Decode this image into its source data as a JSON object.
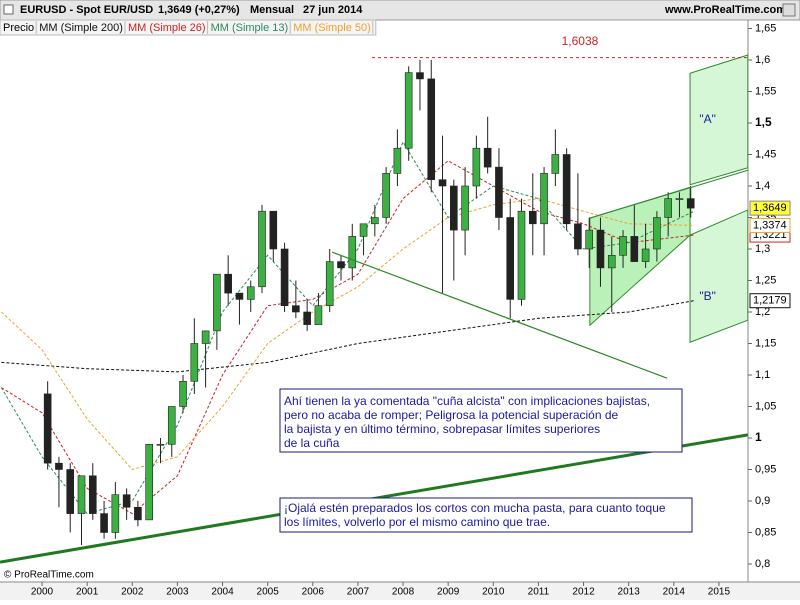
{
  "chart_data": {
    "type": "candlestick",
    "title": "EURUSD - Spot EUR/USD",
    "quote": "1,3649 (+0,27%)",
    "period": "Mensual",
    "date": "27 jun 2014",
    "source": "www.ProRealTime.com",
    "copyright": "© ProRealTime.com",
    "price_name": "Precio",
    "price_last_label": "1,3649",
    "up_color": "#3cb043",
    "down_color": "#222222",
    "x": [
      2000.125,
      2000.375,
      2000.625,
      2000.875,
      2001.125,
      2001.375,
      2001.625,
      2001.875,
      2002.125,
      2002.375,
      2002.625,
      2002.875,
      2003.125,
      2003.375,
      2003.625,
      2003.875,
      2004.125,
      2004.375,
      2004.625,
      2004.875,
      2005.125,
      2005.375,
      2005.625,
      2005.875,
      2006.125,
      2006.375,
      2006.625,
      2006.875,
      2007.125,
      2007.375,
      2007.625,
      2007.875,
      2008.125,
      2008.375,
      2008.625,
      2008.875,
      2009.125,
      2009.375,
      2009.625,
      2009.875,
      2010.125,
      2010.375,
      2010.625,
      2010.875,
      2011.125,
      2011.375,
      2011.625,
      2011.875,
      2012.125,
      2012.375,
      2012.625,
      2012.875,
      2013.125,
      2013.375,
      2013.625,
      2013.875,
      2014.125,
      2014.375
    ],
    "open": [
      1.07,
      0.96,
      0.95,
      0.88,
      0.94,
      0.88,
      0.85,
      0.91,
      0.89,
      0.87,
      0.99,
      0.99,
      1.05,
      1.09,
      1.15,
      1.17,
      1.26,
      1.23,
      1.22,
      1.24,
      1.36,
      1.3,
      1.21,
      1.2,
      1.18,
      1.21,
      1.28,
      1.27,
      1.32,
      1.34,
      1.35,
      1.42,
      1.46,
      1.58,
      1.57,
      1.41,
      1.4,
      1.33,
      1.4,
      1.46,
      1.43,
      1.35,
      1.22,
      1.36,
      1.34,
      1.42,
      1.45,
      1.34,
      1.3,
      1.33,
      1.27,
      1.29,
      1.32,
      1.28,
      1.3,
      1.35,
      1.38,
      1.38
    ],
    "high": [
      1.09,
      0.97,
      0.96,
      0.94,
      0.96,
      0.9,
      0.93,
      0.92,
      0.9,
      0.99,
      1.0,
      1.05,
      1.1,
      1.19,
      1.17,
      1.26,
      1.29,
      1.23,
      1.25,
      1.37,
      1.36,
      1.31,
      1.25,
      1.22,
      1.23,
      1.3,
      1.29,
      1.34,
      1.34,
      1.37,
      1.43,
      1.49,
      1.59,
      1.6,
      1.6,
      1.48,
      1.41,
      1.43,
      1.48,
      1.51,
      1.46,
      1.38,
      1.38,
      1.42,
      1.43,
      1.49,
      1.46,
      1.42,
      1.35,
      1.35,
      1.32,
      1.33,
      1.37,
      1.34,
      1.36,
      1.39,
      1.39,
      1.4
    ],
    "low": [
      0.95,
      0.89,
      0.85,
      0.83,
      0.87,
      0.84,
      0.84,
      0.87,
      0.86,
      0.87,
      0.96,
      0.97,
      1.04,
      1.07,
      1.08,
      1.14,
      1.21,
      1.18,
      1.2,
      1.23,
      1.28,
      1.2,
      1.19,
      1.17,
      1.18,
      1.2,
      1.25,
      1.25,
      1.29,
      1.32,
      1.34,
      1.4,
      1.44,
      1.52,
      1.39,
      1.23,
      1.25,
      1.29,
      1.38,
      1.42,
      1.33,
      1.19,
      1.21,
      1.29,
      1.29,
      1.4,
      1.33,
      1.29,
      1.27,
      1.24,
      1.2,
      1.27,
      1.28,
      1.27,
      1.28,
      1.32,
      1.35,
      1.35
    ],
    "close": [
      0.96,
      0.95,
      0.88,
      0.94,
      0.88,
      0.85,
      0.91,
      0.89,
      0.87,
      0.99,
      0.99,
      1.05,
      1.09,
      1.15,
      1.17,
      1.26,
      1.23,
      1.22,
      1.24,
      1.36,
      1.3,
      1.21,
      1.2,
      1.18,
      1.21,
      1.28,
      1.27,
      1.32,
      1.34,
      1.35,
      1.42,
      1.46,
      1.58,
      1.57,
      1.41,
      1.4,
      1.33,
      1.4,
      1.46,
      1.43,
      1.35,
      1.22,
      1.36,
      1.34,
      1.42,
      1.45,
      1.34,
      1.3,
      1.33,
      1.27,
      1.29,
      1.32,
      1.28,
      1.3,
      1.35,
      1.38,
      1.38,
      1.3649
    ],
    "series": [
      {
        "name": "MM (Simple 200)",
        "color": "#111111",
        "x": [
          1999.1,
          2001,
          2003,
          2005,
          2007,
          2009,
          2011,
          2013,
          2014.45
        ],
        "values": [
          1.12,
          1.11,
          1.105,
          1.12,
          1.15,
          1.17,
          1.19,
          1.2,
          1.2179
        ],
        "last_value": 1.2179,
        "last_value_label": "1,2179"
      },
      {
        "name": "MM (Simple 26)",
        "color": "#cc2222",
        "x": [
          1999.1,
          2000,
          2001,
          2002,
          2003,
          2004,
          2005,
          2006,
          2007,
          2008,
          2009,
          2010,
          2011,
          2012,
          2013,
          2014.45
        ],
        "values": [
          1.08,
          1.04,
          0.92,
          0.88,
          0.94,
          1.1,
          1.21,
          1.22,
          1.26,
          1.38,
          1.44,
          1.4,
          1.36,
          1.34,
          1.31,
          1.3221
        ],
        "last_value": 1.3221,
        "last_value_label": "1,3221"
      },
      {
        "name": "MM (Simple 13)",
        "color": "#2e8b57",
        "x": [
          1999.1,
          2000,
          2001,
          2002,
          2003,
          2004,
          2005,
          2006,
          2007,
          2008,
          2009,
          2010,
          2011,
          2012,
          2013,
          2014.45
        ],
        "values": [
          1.08,
          0.97,
          0.88,
          0.9,
          1.02,
          1.2,
          1.29,
          1.21,
          1.3,
          1.47,
          1.35,
          1.4,
          1.38,
          1.3,
          1.31,
          1.36
        ]
      },
      {
        "name": "MM (Simple 50)",
        "color": "#f0a030",
        "x": [
          1999.1,
          2000,
          2001,
          2002,
          2003,
          2004,
          2005,
          2006,
          2007,
          2008,
          2009,
          2010,
          2011,
          2012,
          2013,
          2014.45
        ],
        "values": [
          1.2,
          1.14,
          1.03,
          0.95,
          0.97,
          1.05,
          1.15,
          1.2,
          1.24,
          1.3,
          1.35,
          1.37,
          1.38,
          1.36,
          1.34,
          1.3374
        ],
        "last_value": 1.3374,
        "last_value_label": "1,3374"
      }
    ],
    "xlim": [
      1999.069,
      2015.644
    ],
    "xticks": [
      2000,
      2001,
      2002,
      2003,
      2004,
      2005,
      2006,
      2007,
      2008,
      2009,
      2010,
      2011,
      2012,
      2013,
      2014,
      2015
    ],
    "ylim": [
      0.7714,
      1.6635
    ],
    "yticks": [
      {
        "value": 0.8,
        "label": "0,8"
      },
      {
        "value": 0.85,
        "label": "0,85"
      },
      {
        "value": 0.9,
        "label": "0,9"
      },
      {
        "value": 0.95,
        "label": "0,95"
      },
      {
        "value": 1,
        "label": "1",
        "bold": true
      },
      {
        "value": 1.05,
        "label": "1,05"
      },
      {
        "value": 1.1,
        "label": "1,1"
      },
      {
        "value": 1.15,
        "label": "1,15"
      },
      {
        "value": 1.2,
        "label": "1,2"
      },
      {
        "value": 1.25,
        "label": "1,25"
      },
      {
        "value": 1.3,
        "label": "1,3"
      },
      {
        "value": 1.35,
        "label": "1,35"
      },
      {
        "value": 1.4,
        "label": "1,4"
      },
      {
        "value": 1.45,
        "label": "1,45"
      },
      {
        "value": 1.5,
        "label": "1,5",
        "bold": true
      },
      {
        "value": 1.55,
        "label": "1,55"
      },
      {
        "value": 1.6,
        "label": "1,6"
      },
      {
        "value": 1.65,
        "label": "1,65"
      }
    ],
    "level": {
      "value": 1.6038,
      "label": "1,6038",
      "x_from": 2007.31,
      "color": "#cc2222"
    },
    "shapes": [
      {
        "label": "\"A\"",
        "label_at": [
          2014.75,
          1.505
        ],
        "fill": "#ccf5cc",
        "stroke": "#2e8b2e",
        "points": [
          [
            2014.36,
            1.579
          ],
          [
            2015.64,
            1.608
          ],
          [
            2015.64,
            1.429
          ],
          [
            2014.36,
            1.402
          ]
        ]
      },
      {
        "label": "\"B\"",
        "label_at": [
          2014.75,
          1.224
        ],
        "fill": "#ccf5cc",
        "stroke": "#2e8b2e",
        "points": [
          [
            2014.36,
            1.322
          ],
          [
            2015.64,
            1.362
          ],
          [
            2015.64,
            1.187
          ],
          [
            2014.36,
            1.152
          ]
        ]
      },
      {
        "fill": "#a8eea8",
        "stroke": "#2e8b2e",
        "points": [
          [
            2012.14,
            1.349
          ],
          [
            2014.36,
            1.398
          ],
          [
            2014.36,
            1.322
          ],
          [
            2012.14,
            1.179
          ]
        ]
      }
    ],
    "lines": [
      {
        "color": "#2e8b2e",
        "width": 1,
        "points": [
          [
            2012.14,
            1.349
          ],
          [
            2015.64,
            1.425
          ]
        ]
      },
      {
        "color": "#2a8a2a",
        "width": 1.2,
        "points": [
          [
            2006.43,
            1.295
          ],
          [
            2013.85,
            1.095
          ]
        ]
      },
      {
        "color": "#1f7a1f",
        "width": 3,
        "points": [
          [
            1999.07,
            0.803
          ],
          [
            2015.64,
            1.005
          ]
        ]
      }
    ],
    "notes": [
      {
        "lines": [
          "Ahí tienen la ya comentada \"cuña alcista\" con implicaciones bajistas,",
          "pero no acaba de romper; Peligrosa la potencial superación de",
          "la bajista y en último término, sobrepasar límites superiores",
          "de la cuña"
        ]
      },
      {
        "lines": [
          "¡Ojalá estén preparados los cortos con mucha pasta, para cuanto toque",
          "los límites, volverlo por el mismo camino que trae."
        ]
      }
    ]
  }
}
